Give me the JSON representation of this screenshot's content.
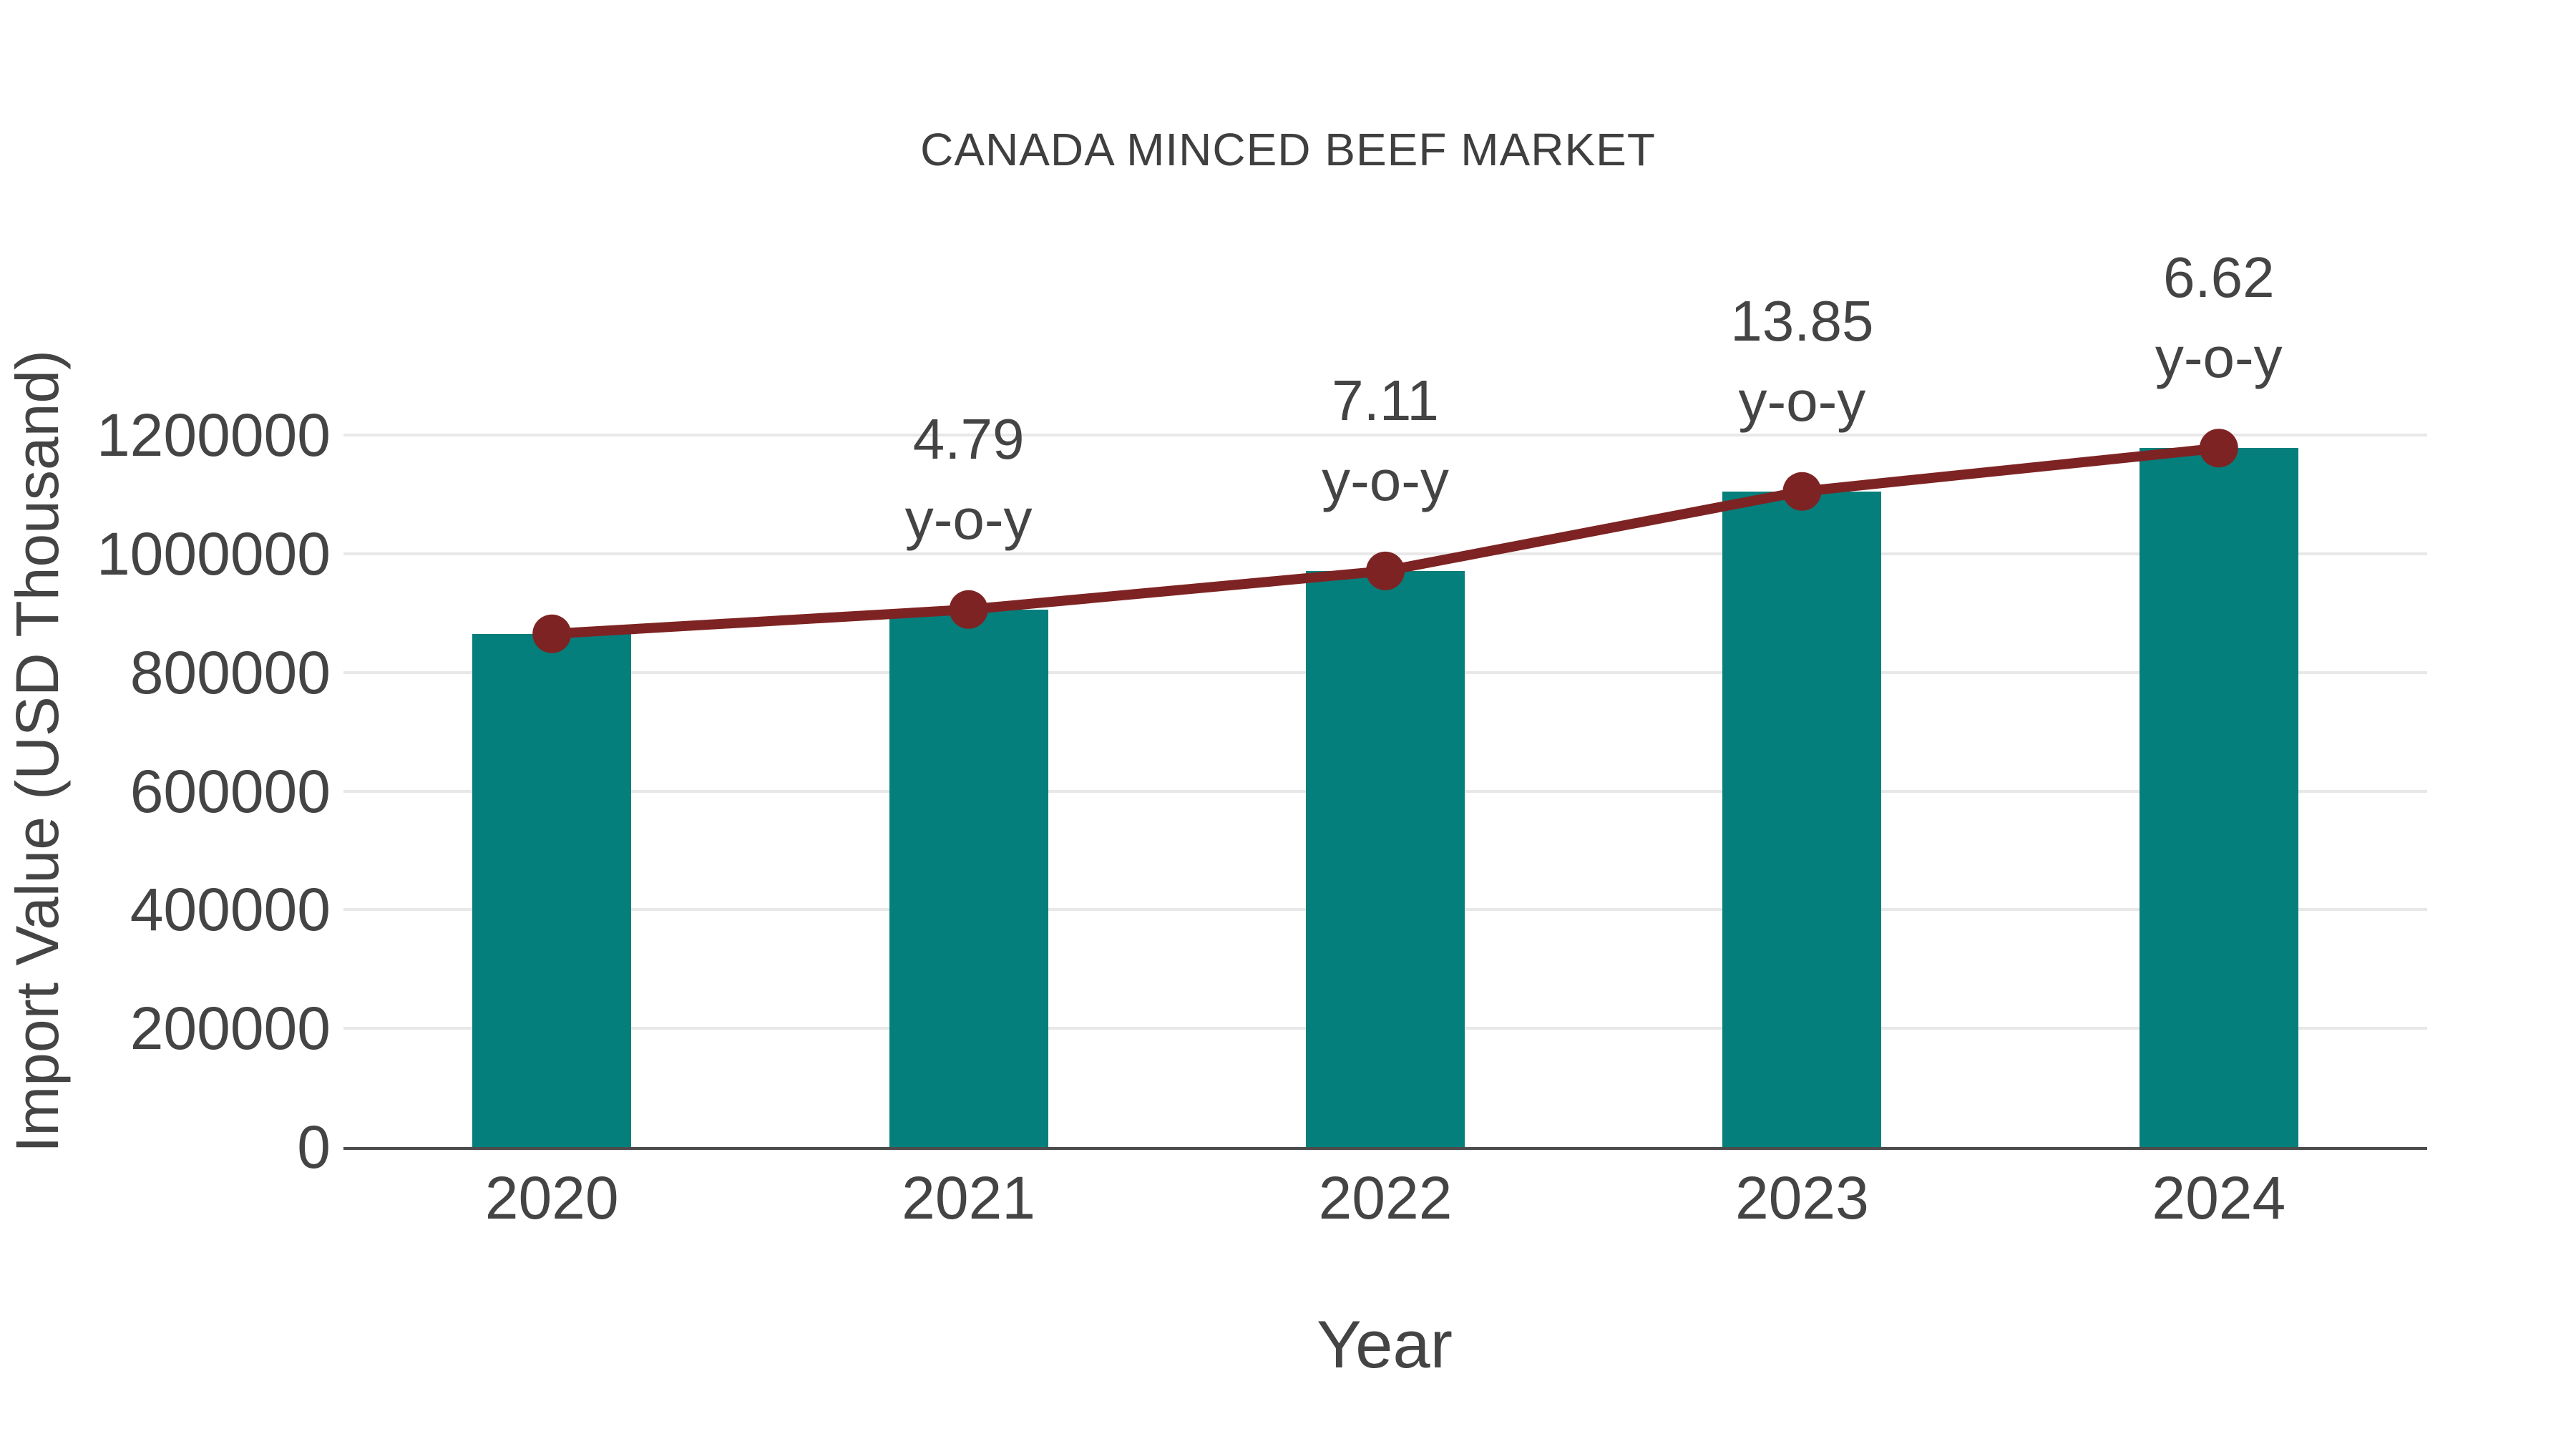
{
  "chart_data": {
    "type": "bar+line",
    "title": "CANADA MINCED BEEF MARKET",
    "xlabel": "Year",
    "ylabel": "Import Value (USD Thousand)",
    "categories": [
      "2020",
      "2021",
      "2022",
      "2023",
      "2024"
    ],
    "series": [
      {
        "name": "Import Value",
        "type": "bar",
        "color": "#057f7c",
        "values": [
          865000,
          906000,
          971000,
          1105000,
          1178000
        ]
      },
      {
        "name": "y-o-y growth marker line",
        "type": "line",
        "color": "#7e2323",
        "values": [
          865000,
          906000,
          971000,
          1105000,
          1178000
        ]
      }
    ],
    "annotations": [
      {
        "category": "2021",
        "value_label": "4.79",
        "suffix_label": "y-o-y"
      },
      {
        "category": "2022",
        "value_label": "7.11",
        "suffix_label": "y-o-y"
      },
      {
        "category": "2023",
        "value_label": "13.85",
        "suffix_label": "y-o-y"
      },
      {
        "category": "2024",
        "value_label": "6.62",
        "suffix_label": "y-o-y"
      }
    ],
    "ylim": [
      0,
      1200000
    ],
    "yticks": [
      0,
      200000,
      400000,
      600000,
      800000,
      1000000,
      1200000
    ],
    "grid": true,
    "legend": false,
    "colors": {
      "bar": "#057f7c",
      "line": "#7e2323",
      "grid": "#e8e8e8",
      "axis": "#4c4c4c",
      "text": "#444444",
      "background": "#ffffff"
    }
  }
}
